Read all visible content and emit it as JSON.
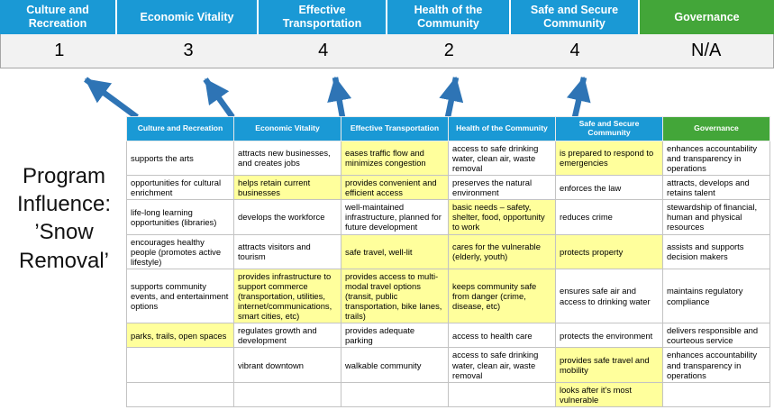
{
  "page": {
    "title": "Program Influence: ’Snow Removal’"
  },
  "colors": {
    "pillar_blue": "#1a99d5",
    "pillar_green": "#43a639",
    "highlight_yellow": "#ffff9c",
    "arrow_blue": "#2e74b5",
    "score_band_bg": "#f2f2f2"
  },
  "pillars": [
    {
      "label": "Culture and Recreation",
      "score": "1",
      "theme": "blue"
    },
    {
      "label": "Economic Vitality",
      "score": "3",
      "theme": "blue"
    },
    {
      "label": "Effective Transportation",
      "score": "4",
      "theme": "blue"
    },
    {
      "label": "Health of the Community",
      "score": "2",
      "theme": "blue"
    },
    {
      "label": "Safe and Secure Community",
      "score": "4",
      "theme": "blue"
    },
    {
      "label": "Governance",
      "score": "N/A",
      "theme": "green"
    }
  ],
  "matrix": {
    "headers": [
      "Culture and Recreation",
      "Economic Vitality",
      "Effective Transportation",
      "Health of the Community",
      "Safe and Secure Community",
      "Governance"
    ],
    "rows": [
      {
        "cells": [
          {
            "text": "supports the arts",
            "highlight": false
          },
          {
            "text": "attracts new businesses, and creates jobs",
            "highlight": false
          },
          {
            "text": "eases traffic flow and minimizes congestion",
            "highlight": true
          },
          {
            "text": "access to safe drinking water, clean air, waste removal",
            "highlight": false
          },
          {
            "text": "is prepared to respond to emergencies",
            "highlight": true
          },
          {
            "text": "enhances accountability and transparency in operations",
            "highlight": false
          }
        ]
      },
      {
        "cells": [
          {
            "text": "opportunities for cultural enrichment",
            "highlight": false
          },
          {
            "text": "helps retain current businesses",
            "highlight": true
          },
          {
            "text": "provides convenient and efficient access",
            "highlight": true
          },
          {
            "text": "preserves the natural environment",
            "highlight": false
          },
          {
            "text": "enforces the law",
            "highlight": false
          },
          {
            "text": "attracts, develops and retains talent",
            "highlight": false
          }
        ]
      },
      {
        "cells": [
          {
            "text": "life-long learning opportunities (libraries)",
            "highlight": false
          },
          {
            "text": "develops the workforce",
            "highlight": false
          },
          {
            "text": "well-maintained infrastructure, planned for future development",
            "highlight": false
          },
          {
            "text": "basic needs – safety, shelter, food, opportunity to work",
            "highlight": true
          },
          {
            "text": "reduces crime",
            "highlight": false
          },
          {
            "text": "stewardship of financial, human and physical resources",
            "highlight": false
          }
        ]
      },
      {
        "cells": [
          {
            "text": "encourages healthy people (promotes active lifestyle)",
            "highlight": false
          },
          {
            "text": "attracts visitors and tourism",
            "highlight": false
          },
          {
            "text": "safe travel, well-lit",
            "highlight": true
          },
          {
            "text": "cares for the vulnerable (elderly, youth)",
            "highlight": true
          },
          {
            "text": "protects property",
            "highlight": true
          },
          {
            "text": "assists and supports decision makers",
            "highlight": false
          }
        ]
      },
      {
        "cells": [
          {
            "text": "supports community events, and entertainment options",
            "highlight": false
          },
          {
            "text": "provides infrastructure to support commerce (transportation, utilities, internet/communications, smart cities, etc)",
            "highlight": true
          },
          {
            "text": "provides access to multi-modal travel options (transit, public transportation, bike lanes, trails)",
            "highlight": true
          },
          {
            "text": "keeps community safe from danger (crime, disease, etc)",
            "highlight": true
          },
          {
            "text": "ensures safe air and access to drinking water",
            "highlight": false
          },
          {
            "text": "maintains regulatory compliance",
            "highlight": false
          }
        ]
      },
      {
        "cells": [
          {
            "text": "parks, trails, open spaces",
            "highlight": true
          },
          {
            "text": "regulates growth and development",
            "highlight": false
          },
          {
            "text": "provides adequate parking",
            "highlight": false
          },
          {
            "text": "access to health care",
            "highlight": false
          },
          {
            "text": "protects the environment",
            "highlight": false
          },
          {
            "text": "delivers responsible and courteous service",
            "highlight": false
          }
        ]
      },
      {
        "cells": [
          {
            "text": "",
            "highlight": false
          },
          {
            "text": "vibrant downtown",
            "highlight": false
          },
          {
            "text": "walkable community",
            "highlight": false
          },
          {
            "text": "access to safe drinking water, clean air, waste removal",
            "highlight": false
          },
          {
            "text": "provides safe travel and mobility",
            "highlight": true
          },
          {
            "text": "enhances accountability and transparency in operations",
            "highlight": false
          }
        ]
      },
      {
        "cells": [
          {
            "text": "",
            "highlight": false
          },
          {
            "text": "",
            "highlight": false
          },
          {
            "text": "",
            "highlight": false
          },
          {
            "text": "",
            "highlight": false
          },
          {
            "text": "looks after it's most vulnerable",
            "highlight": true
          },
          {
            "text": "",
            "highlight": false
          }
        ]
      }
    ]
  }
}
